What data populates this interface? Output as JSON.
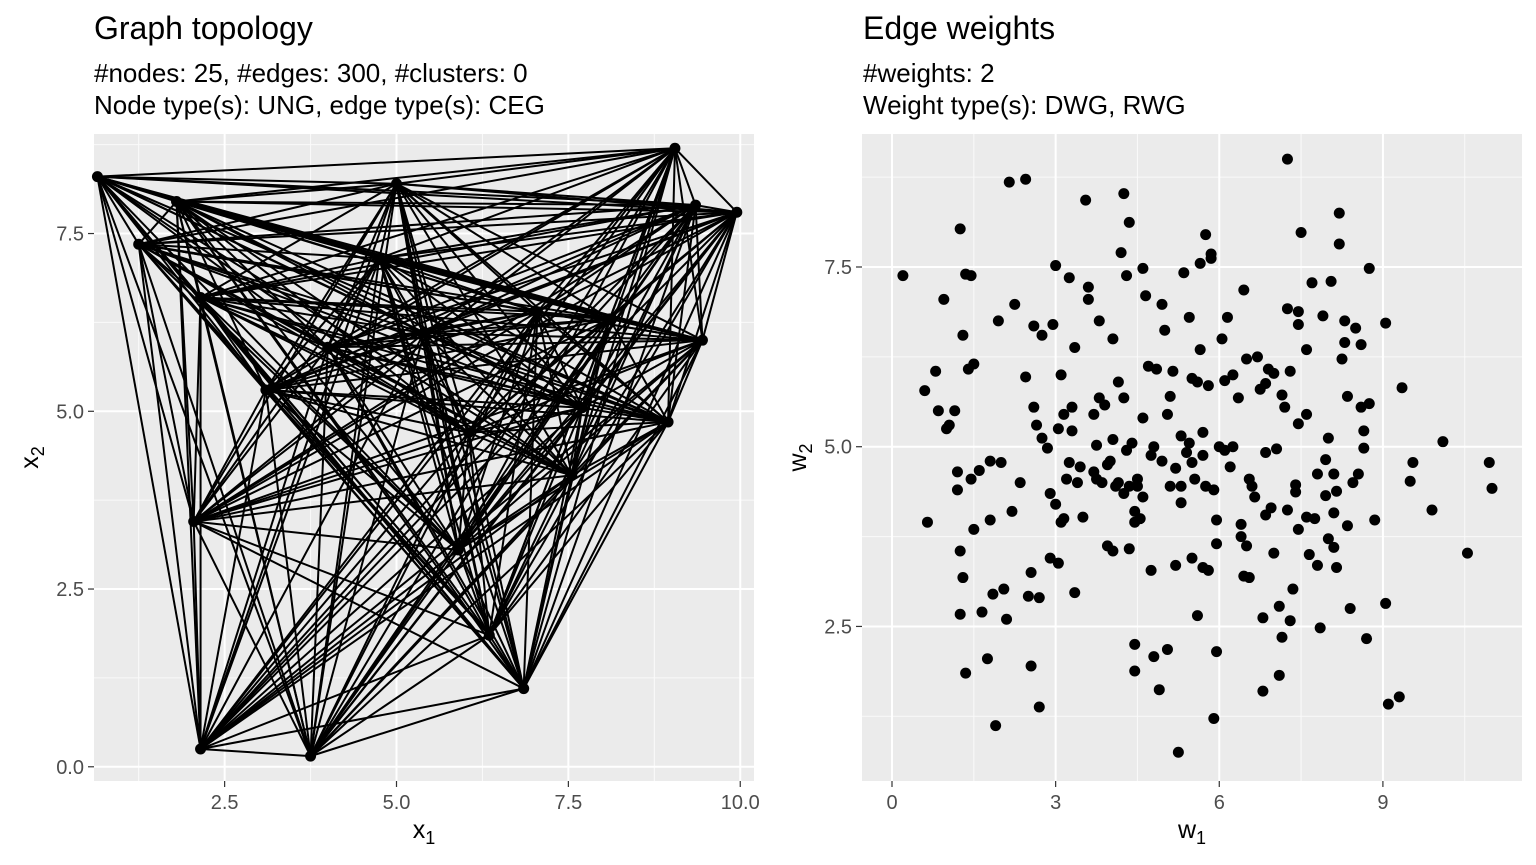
{
  "chart_data": [
    {
      "type": "network",
      "title": "Graph topology",
      "subtitle_lines": [
        "#nodes: 25, #edges: 300, #clusters: 0",
        "Node type(s): UNG, edge type(s): CEG"
      ],
      "xlabel": "x",
      "xlabel_sub": "1",
      "ylabel": "x",
      "ylabel_sub": "2",
      "xlim": [
        0.6,
        10.2
      ],
      "ylim": [
        -0.2,
        8.9
      ],
      "xticks": [
        2.5,
        5.0,
        7.5,
        10.0
      ],
      "xtick_labels": [
        "2.5",
        "5.0",
        "7.5",
        "10.0"
      ],
      "yticks": [
        0.0,
        2.5,
        5.0,
        7.5
      ],
      "ytick_labels": [
        "0.0",
        "2.5",
        "5.0",
        "7.5"
      ],
      "grid": true,
      "complete_graph": true,
      "nodes": [
        [
          0.65,
          8.3
        ],
        [
          9.05,
          8.7
        ],
        [
          9.95,
          7.8
        ],
        [
          9.35,
          7.9
        ],
        [
          5.0,
          8.2
        ],
        [
          1.8,
          7.95
        ],
        [
          1.25,
          7.35
        ],
        [
          2.15,
          6.6
        ],
        [
          9.45,
          6.0
        ],
        [
          8.95,
          4.85
        ],
        [
          2.05,
          3.45
        ],
        [
          2.15,
          0.25
        ],
        [
          3.75,
          0.15
        ],
        [
          6.85,
          1.1
        ],
        [
          6.35,
          1.85
        ],
        [
          7.7,
          5.05
        ],
        [
          5.4,
          6.1
        ],
        [
          7.05,
          6.4
        ],
        [
          4.0,
          5.9
        ],
        [
          6.05,
          4.7
        ],
        [
          3.1,
          5.3
        ],
        [
          7.55,
          4.1
        ],
        [
          4.75,
          7.15
        ],
        [
          8.1,
          6.3
        ],
        [
          5.9,
          3.05
        ]
      ]
    },
    {
      "type": "scatter",
      "title": "Edge weights",
      "subtitle_lines": [
        "#weights: 2",
        "Weight type(s): DWG, RWG"
      ],
      "xlabel": "w",
      "xlabel_sub": "1",
      "ylabel": "w",
      "ylabel_sub": "2",
      "xlim": [
        -0.55,
        11.55
      ],
      "ylim": [
        0.35,
        9.35
      ],
      "xticks": [
        0,
        3,
        6,
        9
      ],
      "xtick_labels": [
        "0",
        "3",
        "6",
        "9"
      ],
      "yticks": [
        2.5,
        5.0,
        7.5
      ],
      "ytick_labels": [
        "2.5",
        "5.0",
        "7.5"
      ],
      "grid": true,
      "points": [
        [
          0.2,
          7.38
        ],
        [
          0.6,
          5.78
        ],
        [
          0.65,
          3.95
        ],
        [
          0.8,
          6.05
        ],
        [
          0.85,
          5.5
        ],
        [
          0.95,
          7.05
        ],
        [
          1.0,
          5.25
        ],
        [
          1.05,
          5.3
        ],
        [
          1.15,
          5.5
        ],
        [
          1.2,
          4.4
        ],
        [
          1.2,
          4.65
        ],
        [
          1.25,
          3.55
        ],
        [
          1.25,
          8.03
        ],
        [
          1.25,
          2.67
        ],
        [
          1.3,
          3.18
        ],
        [
          1.3,
          6.55
        ],
        [
          1.35,
          7.4
        ],
        [
          1.35,
          1.85
        ],
        [
          1.4,
          6.08
        ],
        [
          1.45,
          7.38
        ],
        [
          1.5,
          6.15
        ],
        [
          1.45,
          4.55
        ],
        [
          1.5,
          3.85
        ],
        [
          1.6,
          4.67
        ],
        [
          1.65,
          2.7
        ],
        [
          1.75,
          2.05
        ],
        [
          1.8,
          3.98
        ],
        [
          1.8,
          4.8
        ],
        [
          1.85,
          2.95
        ],
        [
          1.9,
          1.12
        ],
        [
          1.95,
          6.75
        ],
        [
          2.0,
          4.78
        ],
        [
          2.05,
          3.02
        ],
        [
          2.1,
          2.6
        ],
        [
          2.15,
          8.68
        ],
        [
          2.2,
          4.1
        ],
        [
          2.25,
          6.98
        ],
        [
          2.35,
          4.5
        ],
        [
          2.45,
          5.97
        ],
        [
          2.45,
          8.72
        ],
        [
          2.5,
          2.92
        ],
        [
          2.55,
          3.25
        ],
        [
          2.55,
          1.95
        ],
        [
          2.6,
          5.55
        ],
        [
          2.6,
          6.68
        ],
        [
          2.65,
          5.3
        ],
        [
          2.7,
          2.9
        ],
        [
          2.7,
          1.38
        ],
        [
          2.75,
          6.55
        ],
        [
          2.85,
          4.98
        ],
        [
          2.9,
          4.35
        ],
        [
          2.9,
          3.45
        ],
        [
          2.95,
          6.7
        ],
        [
          3.0,
          4.2
        ],
        [
          3.0,
          7.52
        ],
        [
          3.05,
          5.25
        ],
        [
          3.05,
          3.38
        ],
        [
          3.1,
          3.95
        ],
        [
          3.1,
          6.0
        ],
        [
          3.15,
          4.0
        ],
        [
          3.15,
          5.45
        ],
        [
          3.2,
          4.55
        ],
        [
          3.25,
          4.78
        ],
        [
          3.25,
          7.35
        ],
        [
          3.3,
          5.22
        ],
        [
          3.3,
          5.55
        ],
        [
          3.35,
          6.38
        ],
        [
          3.35,
          2.97
        ],
        [
          3.4,
          4.5
        ],
        [
          3.45,
          4.72
        ],
        [
          3.5,
          4.02
        ],
        [
          3.55,
          8.43
        ],
        [
          3.6,
          7.22
        ],
        [
          3.6,
          7.05
        ],
        [
          3.7,
          5.45
        ],
        [
          3.7,
          4.65
        ],
        [
          3.75,
          5.02
        ],
        [
          3.75,
          4.55
        ],
        [
          3.8,
          5.68
        ],
        [
          3.8,
          6.75
        ],
        [
          3.85,
          4.5
        ],
        [
          3.9,
          5.58
        ],
        [
          3.95,
          3.62
        ],
        [
          4.0,
          4.8
        ],
        [
          4.05,
          6.5
        ],
        [
          4.05,
          5.1
        ],
        [
          4.05,
          3.55
        ],
        [
          4.1,
          4.45
        ],
        [
          4.15,
          4.5
        ],
        [
          4.15,
          5.9
        ],
        [
          4.2,
          7.7
        ],
        [
          4.25,
          8.52
        ],
        [
          4.25,
          5.68
        ],
        [
          4.25,
          4.35
        ],
        [
          4.3,
          4.95
        ],
        [
          4.3,
          7.38
        ],
        [
          4.35,
          8.12
        ],
        [
          4.35,
          4.45
        ],
        [
          4.35,
          3.58
        ],
        [
          4.4,
          5.05
        ],
        [
          4.45,
          4.1
        ],
        [
          4.45,
          3.95
        ],
        [
          4.5,
          4.55
        ],
        [
          4.5,
          4.45
        ],
        [
          4.45,
          2.25
        ],
        [
          4.45,
          1.88
        ],
        [
          4.55,
          4.0
        ],
        [
          4.6,
          7.48
        ],
        [
          4.6,
          5.4
        ],
        [
          4.65,
          7.1
        ],
        [
          4.7,
          6.12
        ],
        [
          4.75,
          4.88
        ],
        [
          4.75,
          3.28
        ],
        [
          4.8,
          5.0
        ],
        [
          4.8,
          2.08
        ],
        [
          4.85,
          6.08
        ],
        [
          4.9,
          1.62
        ],
        [
          4.95,
          4.8
        ],
        [
          4.95,
          6.98
        ],
        [
          5.0,
          6.62
        ],
        [
          5.05,
          5.45
        ],
        [
          5.05,
          2.18
        ],
        [
          5.1,
          4.45
        ],
        [
          5.1,
          5.7
        ],
        [
          5.15,
          6.05
        ],
        [
          5.2,
          3.35
        ],
        [
          5.2,
          4.7
        ],
        [
          5.25,
          0.75
        ],
        [
          5.3,
          4.45
        ],
        [
          5.3,
          4.22
        ],
        [
          5.3,
          5.15
        ],
        [
          5.35,
          7.42
        ],
        [
          5.4,
          4.92
        ],
        [
          5.45,
          6.8
        ],
        [
          5.5,
          5.95
        ],
        [
          5.5,
          4.78
        ],
        [
          5.5,
          3.45
        ],
        [
          5.55,
          4.55
        ],
        [
          5.6,
          5.9
        ],
        [
          5.6,
          2.65
        ],
        [
          5.65,
          6.35
        ],
        [
          5.65,
          7.55
        ],
        [
          5.7,
          5.2
        ],
        [
          5.7,
          4.88
        ],
        [
          5.7,
          3.32
        ],
        [
          5.75,
          7.95
        ],
        [
          5.75,
          4.45
        ],
        [
          5.8,
          5.85
        ],
        [
          5.8,
          3.28
        ],
        [
          5.85,
          7.68
        ],
        [
          5.85,
          7.62
        ],
        [
          5.9,
          4.4
        ],
        [
          5.9,
          1.22
        ],
        [
          5.95,
          3.65
        ],
        [
          5.95,
          3.98
        ],
        [
          5.95,
          2.15
        ],
        [
          6.0,
          5.0
        ],
        [
          6.05,
          6.5
        ],
        [
          6.1,
          4.95
        ],
        [
          6.1,
          5.92
        ],
        [
          6.15,
          6.8
        ],
        [
          6.2,
          4.72
        ],
        [
          6.25,
          5.0
        ],
        [
          6.35,
          5.68
        ],
        [
          6.4,
          3.92
        ],
        [
          6.4,
          3.75
        ],
        [
          6.45,
          3.2
        ],
        [
          6.45,
          7.18
        ],
        [
          6.5,
          6.22
        ],
        [
          6.5,
          3.62
        ],
        [
          6.55,
          3.18
        ],
        [
          6.55,
          4.55
        ],
        [
          6.6,
          4.45
        ],
        [
          6.7,
          6.25
        ],
        [
          6.75,
          5.8
        ],
        [
          6.8,
          2.62
        ],
        [
          6.8,
          1.6
        ],
        [
          6.85,
          4.05
        ],
        [
          6.85,
          4.92
        ],
        [
          6.85,
          5.88
        ],
        [
          6.9,
          6.08
        ],
        [
          6.95,
          4.15
        ],
        [
          7.0,
          6.02
        ],
        [
          7.0,
          3.52
        ],
        [
          7.05,
          4.97
        ],
        [
          7.1,
          1.82
        ],
        [
          7.1,
          2.78
        ],
        [
          7.15,
          2.35
        ],
        [
          7.15,
          5.72
        ],
        [
          7.2,
          5.55
        ],
        [
          7.25,
          9.0
        ],
        [
          7.25,
          4.12
        ],
        [
          7.25,
          6.92
        ],
        [
          7.3,
          2.58
        ],
        [
          7.3,
          6.05
        ],
        [
          7.35,
          3.02
        ],
        [
          7.4,
          4.47
        ],
        [
          7.4,
          4.37
        ],
        [
          7.45,
          5.32
        ],
        [
          7.45,
          6.7
        ],
        [
          7.45,
          6.88
        ],
        [
          7.45,
          3.85
        ],
        [
          7.5,
          7.98
        ],
        [
          7.6,
          5.45
        ],
        [
          7.6,
          6.35
        ],
        [
          7.65,
          3.5
        ],
        [
          7.7,
          7.28
        ],
        [
          7.75,
          4.0
        ],
        [
          7.8,
          4.62
        ],
        [
          7.8,
          3.35
        ],
        [
          7.85,
          2.48
        ],
        [
          7.9,
          6.82
        ],
        [
          7.95,
          4.82
        ],
        [
          7.95,
          4.32
        ],
        [
          8.0,
          5.12
        ],
        [
          8.0,
          3.72
        ],
        [
          8.05,
          7.3
        ],
        [
          8.1,
          4.08
        ],
        [
          8.1,
          3.6
        ],
        [
          8.1,
          4.62
        ],
        [
          8.15,
          4.38
        ],
        [
          8.15,
          3.32
        ],
        [
          8.2,
          8.25
        ],
        [
          8.2,
          7.82
        ],
        [
          8.25,
          6.22
        ],
        [
          8.3,
          6.75
        ],
        [
          8.3,
          6.45
        ],
        [
          8.35,
          5.7
        ],
        [
          8.35,
          3.9
        ],
        [
          8.4,
          2.75
        ],
        [
          8.45,
          4.5
        ],
        [
          8.5,
          6.65
        ],
        [
          8.55,
          4.62
        ],
        [
          8.6,
          6.42
        ],
        [
          8.6,
          5.55
        ],
        [
          8.65,
          4.98
        ],
        [
          8.65,
          5.22
        ],
        [
          8.7,
          2.33
        ],
        [
          8.75,
          5.6
        ],
        [
          8.75,
          7.48
        ],
        [
          8.85,
          3.98
        ],
        [
          9.05,
          6.72
        ],
        [
          9.05,
          2.82
        ],
        [
          9.1,
          1.42
        ],
        [
          9.3,
          1.52
        ],
        [
          9.35,
          5.82
        ],
        [
          9.5,
          4.52
        ],
        [
          9.55,
          4.78
        ],
        [
          9.9,
          4.12
        ],
        [
          10.1,
          5.07
        ],
        [
          10.55,
          3.52
        ],
        [
          10.95,
          4.78
        ],
        [
          11.0,
          4.42
        ],
        [
          7.6,
          4.02
        ],
        [
          6.65,
          4.3
        ],
        [
          3.95,
          4.75
        ],
        [
          4.6,
          4.3
        ],
        [
          5.45,
          5.05
        ],
        [
          2.75,
          5.12
        ],
        [
          6.25,
          6.0
        ]
      ]
    }
  ]
}
